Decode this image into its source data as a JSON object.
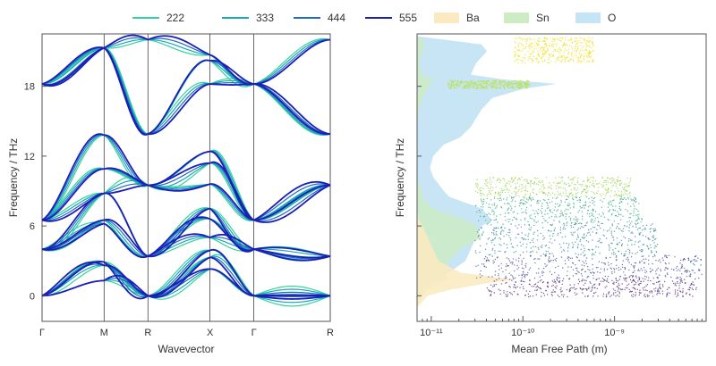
{
  "chart_data": [
    {
      "type": "line",
      "title": "",
      "xlabel": "Wavevector",
      "ylabel": "Frequency / THz",
      "ylim": [
        -2.2,
        22.5
      ],
      "yticks": [
        0,
        6,
        12,
        18
      ],
      "xticks": [
        {
          "label": "Γ",
          "pos": 0.0
        },
        {
          "label": "M",
          "pos": 1.0
        },
        {
          "label": "R",
          "pos": 1.707
        },
        {
          "label": "X",
          "pos": 2.707
        },
        {
          "label": "Γ",
          "pos": 3.414
        },
        {
          "label": "R",
          "pos": 4.646
        }
      ],
      "legend": "top",
      "series": [
        {
          "name": "222",
          "color": "#34d39a"
        },
        {
          "name": "333",
          "color": "#19a8b9"
        },
        {
          "name": "444",
          "color": "#2268c4"
        },
        {
          "name": "555",
          "color": "#1a1fb5"
        }
      ],
      "bands_at_points": {
        "Gamma": [
          0,
          0,
          0,
          4.0,
          4.0,
          4.0,
          6.5,
          6.5,
          6.5,
          18.2,
          18.2,
          18.2
        ],
        "M": [
          1.3,
          2.6,
          2.9,
          6.2,
          6.5,
          8.8,
          8.8,
          10.9,
          13.8,
          21.3,
          21.3,
          21.3
        ],
        "R": [
          0,
          0,
          0,
          3.4,
          3.4,
          3.4,
          9.5,
          9.5,
          9.5,
          13.9,
          13.9,
          22.0
        ],
        "X": [
          2.3,
          3.3,
          3.9,
          5.0,
          6.6,
          7.5,
          9.6,
          11.4,
          12.4,
          18.2,
          20.2,
          20.7
        ],
        "R_end": [
          0,
          0,
          0,
          3.4,
          3.4,
          3.4,
          9.5,
          9.5,
          9.5,
          13.9,
          13.9,
          22.0
        ]
      }
    },
    {
      "type": "scatter",
      "title": "",
      "xlabel": "Mean Free Path (m)",
      "ylabel": "Frequency / THz",
      "xscale": "log",
      "xlim": [
        7e-12,
        1e-08
      ],
      "ylim": [
        -2.2,
        22.5
      ],
      "xticks": [
        "10⁻¹¹",
        "10⁻¹⁰",
        "10⁻⁹"
      ],
      "legend": "top",
      "series": [
        {
          "name": "Ba",
          "color": "#fbeac0"
        },
        {
          "name": "Sn",
          "color": "#cdecc4"
        },
        {
          "name": "O",
          "color": "#c5e4f5"
        }
      ],
      "pdos_profile": {
        "freq": [
          -1.0,
          0.0,
          0.5,
          1.0,
          1.4,
          2.0,
          3.0,
          4.0,
          5.0,
          6.0,
          6.5,
          7.5,
          8.0,
          8.5,
          9.0,
          9.6,
          10.2,
          11.0,
          12.0,
          13.0,
          13.6,
          14.5,
          16.0,
          17.0,
          17.8,
          18.2,
          18.6,
          19.0,
          20.0,
          21.0,
          21.6,
          22.3
        ],
        "Ba": [
          0,
          0.1,
          0.3,
          0.6,
          0.9,
          0.4,
          0.2,
          0.15,
          0.1,
          0.05,
          0.02,
          0,
          0,
          0,
          0,
          0,
          0,
          0,
          0,
          0,
          0,
          0,
          0,
          0,
          0,
          0,
          0,
          0,
          0,
          0,
          0,
          0
        ],
        "Sn": [
          0,
          0.05,
          0.1,
          0.2,
          0.3,
          0.25,
          0.3,
          0.4,
          0.6,
          0.55,
          0.45,
          0.15,
          0.1,
          0.05,
          0.05,
          0.02,
          0,
          0,
          0,
          0,
          0,
          0,
          0.02,
          0.05,
          0.1,
          0.12,
          0.15,
          0.05,
          0.02,
          0.05,
          0.08,
          0.02
        ],
        "O": [
          0,
          0.02,
          0.05,
          0.1,
          0.2,
          0.3,
          0.45,
          0.5,
          0.55,
          0.6,
          0.7,
          0.6,
          0.45,
          0.3,
          0.25,
          0.2,
          0.15,
          0.12,
          0.15,
          0.25,
          0.4,
          0.5,
          0.6,
          0.7,
          1.0,
          1.3,
          0.8,
          0.5,
          0.55,
          0.65,
          0.6,
          0
        ]
      },
      "scatter_clusters": [
        {
          "freq": [
            -0.1,
            1.5
          ],
          "mfp": [
            4e-11,
            8e-09
          ],
          "color": "#4a1f6d"
        },
        {
          "freq": [
            1.5,
            3.5
          ],
          "mfp": [
            3e-11,
            9e-09
          ],
          "color": "#3b4a93"
        },
        {
          "freq": [
            3.5,
            6.2
          ],
          "mfp": [
            3e-11,
            3e-09
          ],
          "color": "#2a7f8f"
        },
        {
          "freq": [
            6.2,
            8.5
          ],
          "mfp": [
            3e-11,
            2e-09
          ],
          "color": "#2da37a"
        },
        {
          "freq": [
            8.5,
            10.2
          ],
          "mfp": [
            3e-11,
            1.5e-09
          ],
          "color": "#9ad04a"
        },
        {
          "freq": [
            17.8,
            18.5
          ],
          "mfp": [
            1.5e-11,
            1.2e-10
          ],
          "color": "#b8e24a"
        },
        {
          "freq": [
            20.0,
            22.2
          ],
          "mfp": [
            8e-11,
            6e-10
          ],
          "color": "#f0e020"
        }
      ]
    }
  ],
  "legend": [
    {
      "label": "222",
      "kind": "line",
      "color": "#34d39a"
    },
    {
      "label": "333",
      "kind": "line",
      "color": "#19a8b9"
    },
    {
      "label": "444",
      "kind": "line",
      "color": "#2268c4"
    },
    {
      "label": "555",
      "kind": "line",
      "color": "#1a1fb5"
    },
    {
      "label": "Ba",
      "kind": "patch",
      "color": "#fbeac0"
    },
    {
      "label": "Sn",
      "kind": "patch",
      "color": "#cdecc4"
    },
    {
      "label": "O",
      "kind": "patch",
      "color": "#c5e4f5"
    }
  ]
}
